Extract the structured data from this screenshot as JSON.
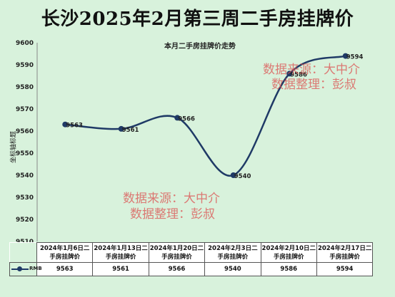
{
  "title": "长沙2025年2月第三周二手房挂牌价",
  "watermark": {
    "line1": "数据来源：大中介",
    "line2": "数据整理：彭叔"
  },
  "colors": {
    "background": "#d8f2dc",
    "line": "#1f3a66"
  },
  "chart_data": {
    "type": "line",
    "title": "本月二手房挂牌价走势",
    "xlabel": "",
    "ylabel": "坐标轴标题",
    "ylim": [
      9510,
      9600
    ],
    "yticks": [
      9510,
      9520,
      9530,
      9540,
      9550,
      9560,
      9570,
      9580,
      9590,
      9600
    ],
    "categories": [
      "2024年1月6日二手房挂牌价",
      "2024年1月13日二手房挂牌价",
      "2024年1月20日二手房挂牌价",
      "2024年2月3日二手房挂牌价",
      "2024年2月10日二手房挂牌价",
      "2024年2月17日二手房挂牌价"
    ],
    "series": [
      {
        "name": "RMB",
        "values": [
          9563,
          9561,
          9566,
          9540,
          9586,
          9594
        ]
      }
    ],
    "grid": false,
    "legend": "data-table"
  }
}
